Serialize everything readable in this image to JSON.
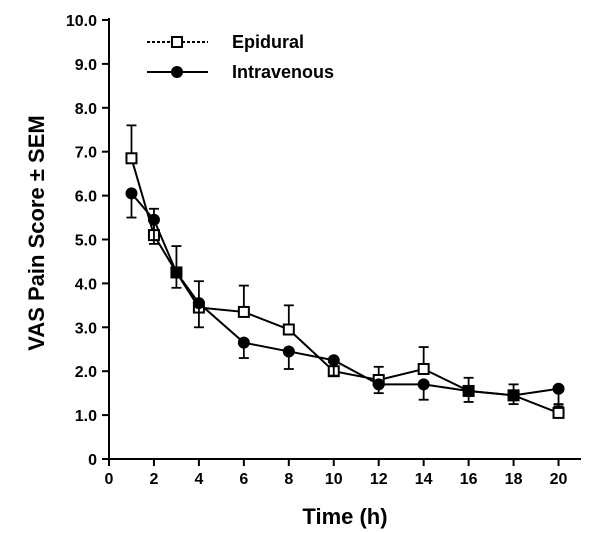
{
  "chart_data": {
    "type": "line",
    "xlabel": "Time (h)",
    "ylabel": "VAS Pain Score ± SEM",
    "xlim": [
      0,
      21
    ],
    "ylim": [
      0,
      10
    ],
    "x_ticks": [
      0,
      2,
      4,
      6,
      8,
      10,
      12,
      14,
      16,
      18,
      20
    ],
    "x_tick_labels": [
      "0",
      "2",
      "4",
      "6",
      "8",
      "10",
      "12",
      "14",
      "16",
      "18",
      "20"
    ],
    "y_ticks": [
      0,
      1,
      2,
      3,
      4,
      5,
      6,
      7,
      8,
      9,
      10
    ],
    "y_tick_labels": [
      "0",
      "1.0",
      "2.0",
      "3.0",
      "4.0",
      "5.0",
      "6.0",
      "7.0",
      "8.0",
      "9.0",
      "10.0"
    ],
    "grid": false,
    "legend_position": "top-left",
    "series": [
      {
        "name": "Epidural",
        "marker": "open-square",
        "color": "#000000",
        "x": [
          1,
          2,
          3,
          4,
          6,
          8,
          10,
          12,
          14,
          16,
          18,
          20
        ],
        "y": [
          6.85,
          5.1,
          4.25,
          3.45,
          3.35,
          2.95,
          2.0,
          1.8,
          2.05,
          1.55,
          1.45,
          1.05
        ],
        "error": [
          0.75,
          0.6,
          0.6,
          0.6,
          0.6,
          0.55,
          0.3,
          0.3,
          0.5,
          0.3,
          0.25,
          0.2
        ]
      },
      {
        "name": "Intravenous",
        "marker": "filled-circle",
        "color": "#000000",
        "x": [
          1,
          2,
          3,
          4,
          6,
          8,
          10,
          12,
          14,
          16,
          18,
          20
        ],
        "y": [
          6.05,
          5.45,
          4.25,
          3.55,
          2.65,
          2.45,
          2.25,
          1.7,
          1.7,
          1.55,
          1.45,
          1.6
        ],
        "error": [
          0.55,
          0.55,
          0.35,
          0.55,
          0.35,
          0.4,
          0.35,
          0.2,
          0.35,
          0.25,
          0.2,
          0.4
        ]
      }
    ]
  }
}
